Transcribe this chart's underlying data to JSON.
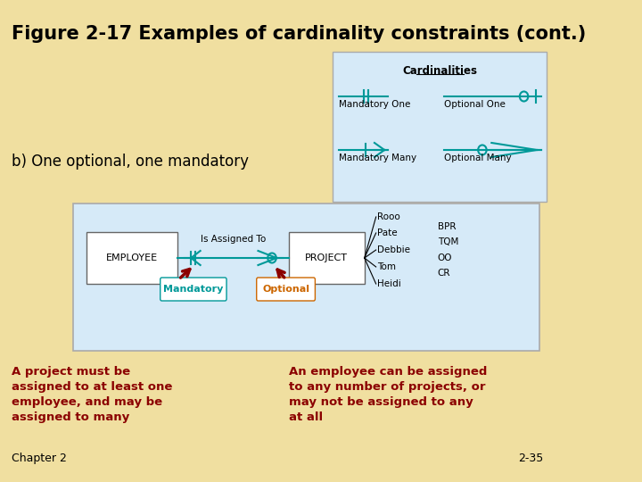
{
  "title": "Figure 2-17 Examples of cardinality constraints (cont.)",
  "subtitle": "b) One optional, one mandatory",
  "bg_color": "#F0DFA0",
  "legend_bg": "#D6EAF8",
  "diagram_bg": "#D6EAF8",
  "legend_title": "Cardinalities",
  "entity1": "EMPLOYEE",
  "entity2": "PROJECT",
  "relationship": "Is Assigned To",
  "mandatory_label": "Mandatory",
  "optional_label": "Optional",
  "names_left": [
    "Rooo",
    "Pate",
    "Debbie",
    "Tom",
    "Heidi"
  ],
  "names_right": [
    "BPR",
    "TQM",
    "OO",
    "CR"
  ],
  "text1": "A project must be\nassigned to at least one\nemployee, and may be\nassigned to many",
  "text2": "An employee can be assigned\nto any number of projects, or\nmay not be assigned to any\nat all",
  "chapter": "Chapter 2",
  "page": "2-35",
  "teal": "#009999",
  "dark_red": "#8B0000"
}
